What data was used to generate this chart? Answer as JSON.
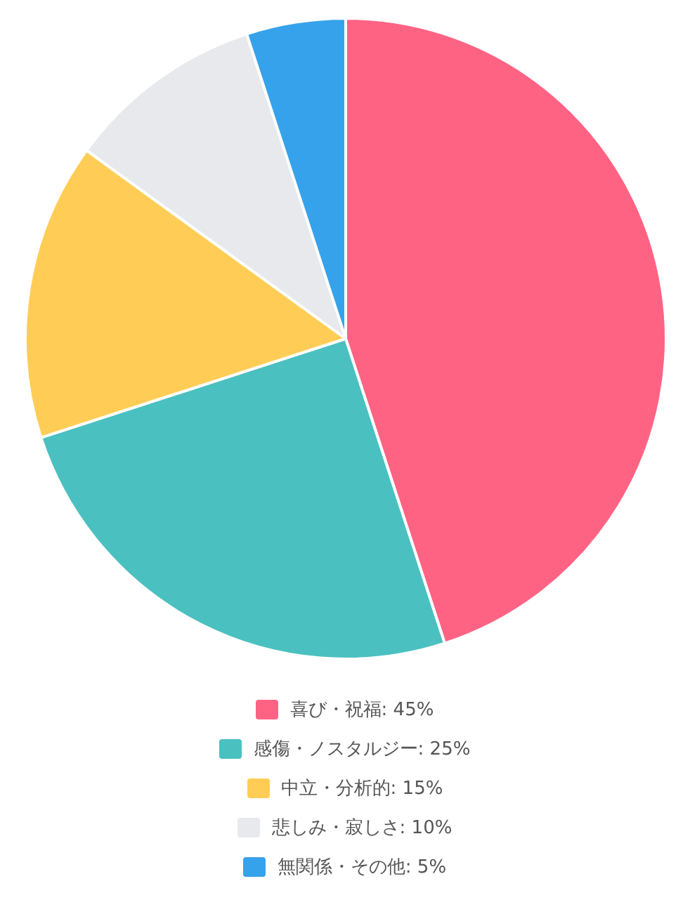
{
  "chart_data": {
    "type": "pie",
    "categories": [
      "喜び・祝福: 45%",
      "感傷・ノスタルジー: 25%",
      "中立・分析的: 15%",
      "悲しみ・寂しさ: 10%",
      "無関係・その他: 5%"
    ],
    "values": [
      45,
      25,
      15,
      10,
      5
    ],
    "colors": [
      "#ff6384",
      "#4bc0c0",
      "#ffcd56",
      "#e7e9ed",
      "#36a2eb"
    ],
    "legend": "bottom"
  }
}
